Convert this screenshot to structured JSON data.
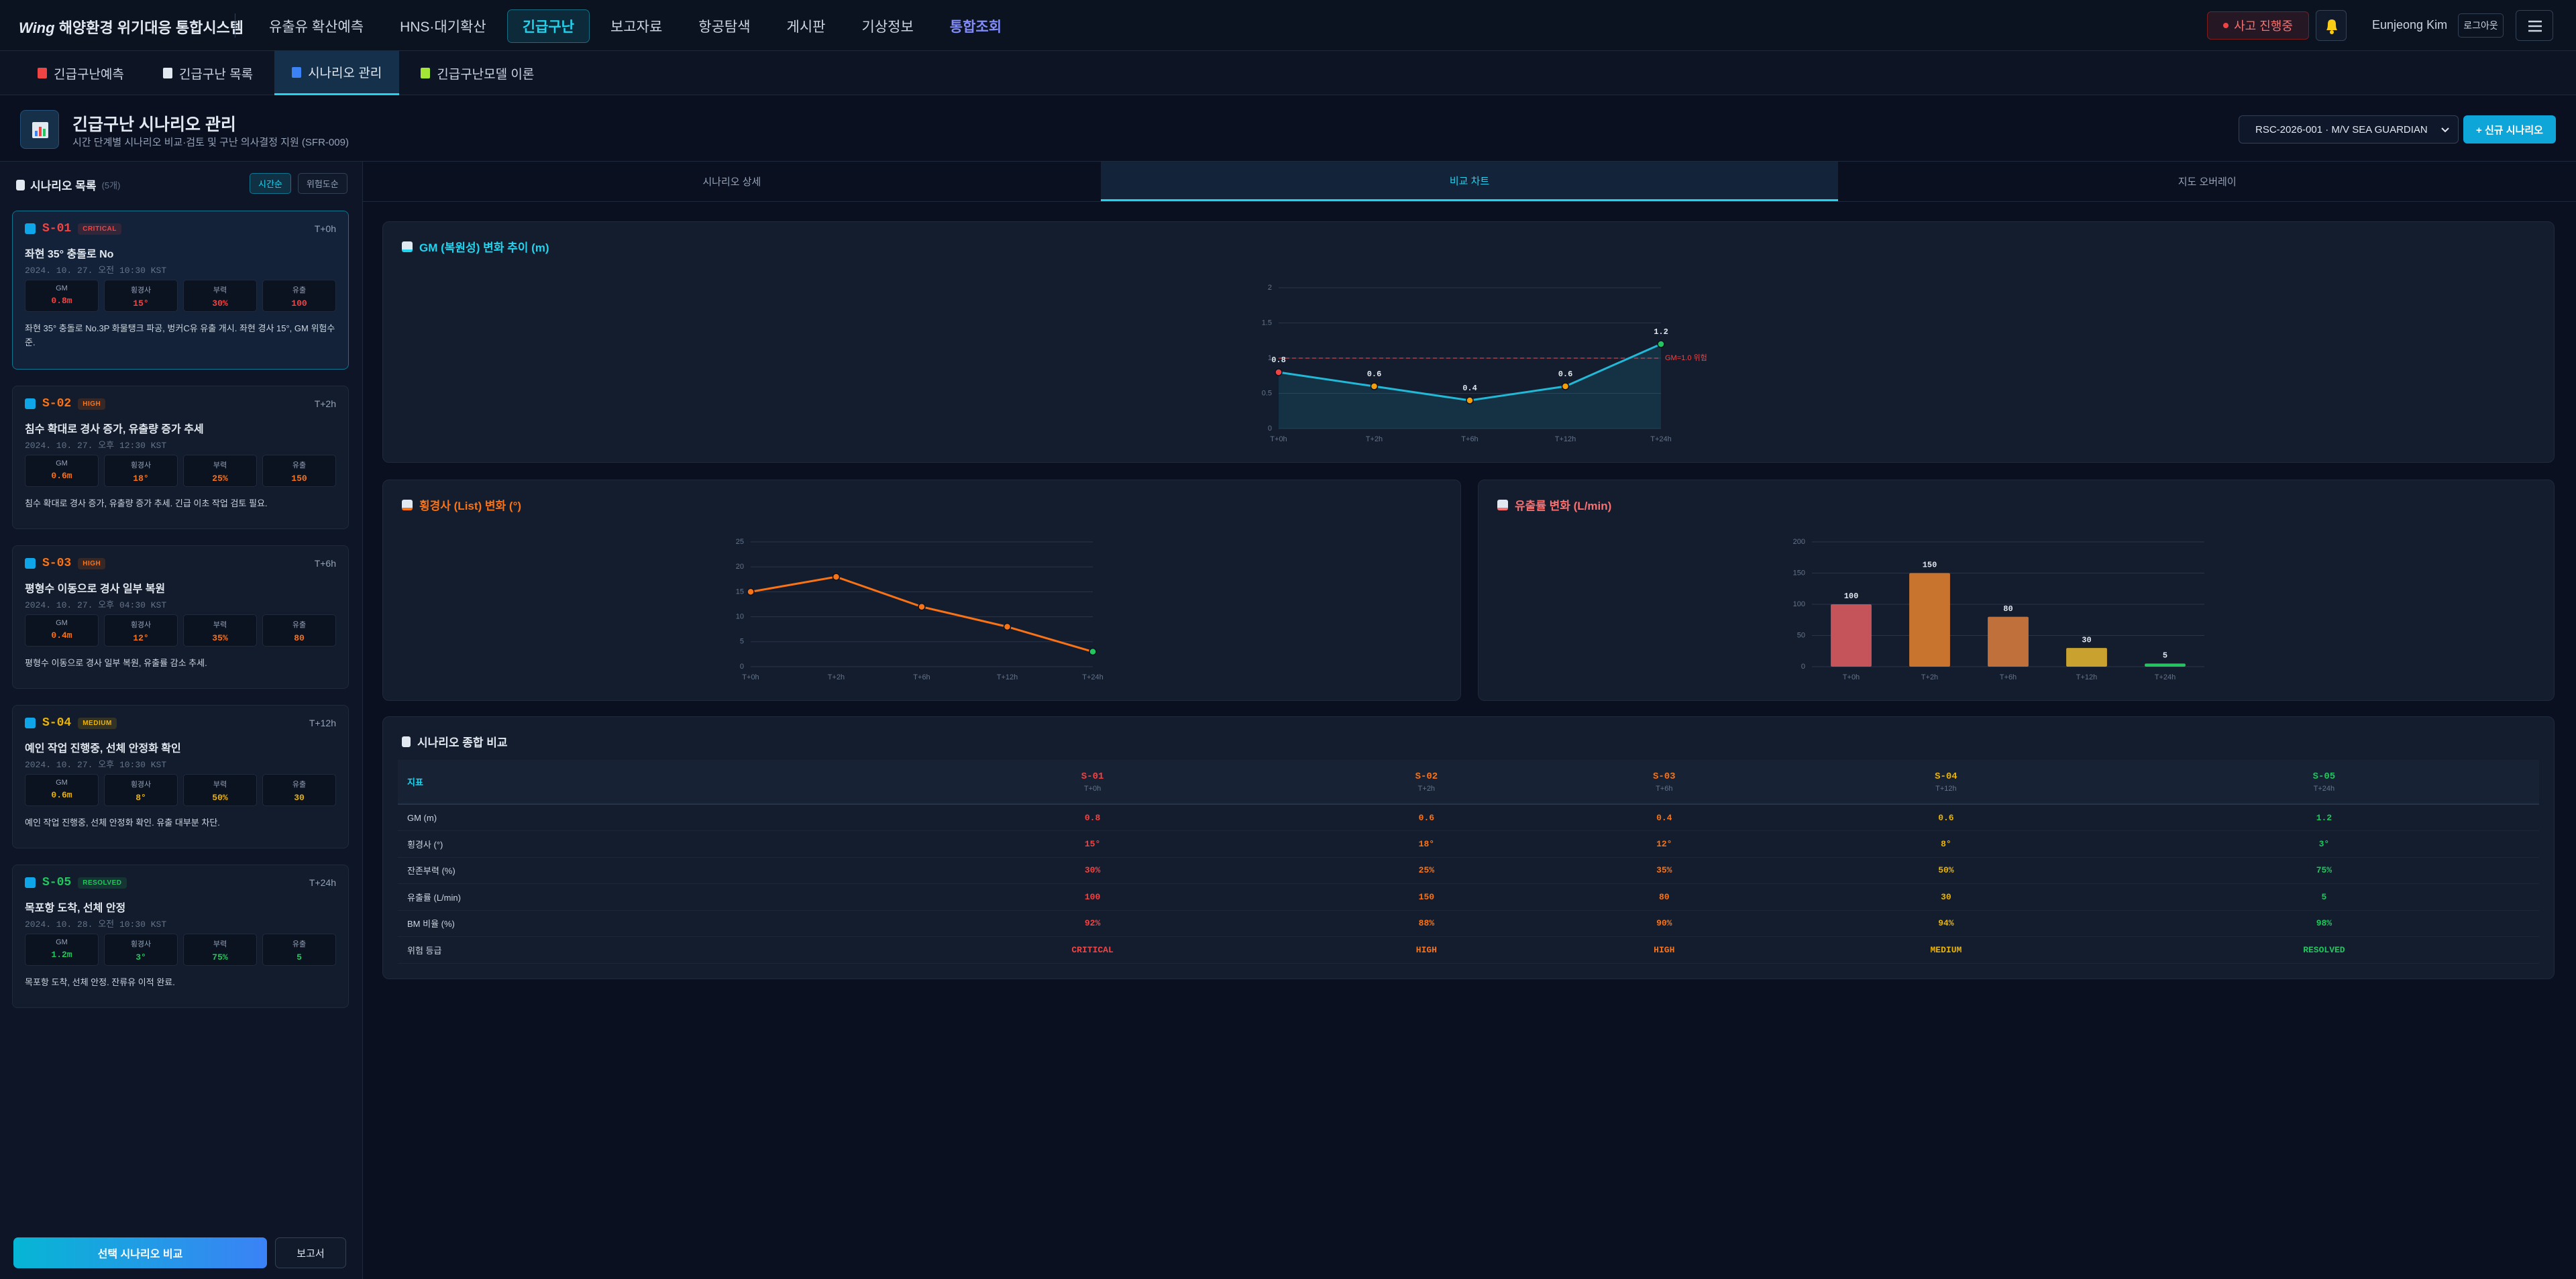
{
  "nav": {
    "logo": "Wing",
    "system": "해양환경 위기대응 통합시스템",
    "items": [
      "유출유 확산예측",
      "HNS·대기확산",
      "긴급구난",
      "보고자료",
      "항공탐색",
      "게시판",
      "기상정보",
      "통합조회"
    ],
    "active": 2,
    "highlight": 7,
    "status": "사고 진행중",
    "user": "Eunjeong Kim",
    "logout": "로그아웃"
  },
  "subtabs": {
    "items": [
      "긴급구난예측",
      "긴급구난 목록",
      "시나리오 관리",
      "긴급구난모델 이론"
    ],
    "active": 2
  },
  "header": {
    "title": "긴급구난 시나리오 관리",
    "subtitle": "시간 단계별 시나리오 비교·검토 및 구난 의사결정 지원 (SFR-009)",
    "incident": "RSC-2026-001 · M/V SEA GUARDIAN",
    "new_button": "+ 신규 시나리오"
  },
  "list": {
    "title": "시나리오 목록",
    "count": "(5개)",
    "sort": [
      "시간순",
      "위험도순"
    ],
    "selected": 0,
    "scenarios": [
      {
        "id": "S-01",
        "level": "CRITICAL",
        "time": "T+0h",
        "title": "좌현 35° 충돌로 No",
        "datetime": "2024. 10. 27. 오전 10:30 KST",
        "metrics": [
          {
            "label": "GM",
            "value": "0.8m"
          },
          {
            "label": "횡경사",
            "value": "15°"
          },
          {
            "label": "부력",
            "value": "30%"
          },
          {
            "label": "유출",
            "value": "100"
          }
        ],
        "desc": "좌현 35° 충돌로 No.3P 화물탱크 파공, 벙커C유 유출 개시. 좌현 경사 15°, GM 위험수준."
      },
      {
        "id": "S-02",
        "level": "HIGH",
        "time": "T+2h",
        "title": "침수 확대로 경사 증가, 유출량 증가 추세",
        "datetime": "2024. 10. 27. 오후 12:30 KST",
        "metrics": [
          {
            "label": "GM",
            "value": "0.6m"
          },
          {
            "label": "횡경사",
            "value": "18°"
          },
          {
            "label": "부력",
            "value": "25%"
          },
          {
            "label": "유출",
            "value": "150"
          }
        ],
        "desc": "침수 확대로 경사 증가, 유출량 증가 추세. 긴급 이초 작업 검토 필요."
      },
      {
        "id": "S-03",
        "level": "HIGH",
        "time": "T+6h",
        "title": "평형수 이동으로 경사 일부 복원",
        "datetime": "2024. 10. 27. 오후 04:30 KST",
        "metrics": [
          {
            "label": "GM",
            "value": "0.4m"
          },
          {
            "label": "횡경사",
            "value": "12°"
          },
          {
            "label": "부력",
            "value": "35%"
          },
          {
            "label": "유출",
            "value": "80"
          }
        ],
        "desc": "평형수 이동으로 경사 일부 복원, 유출률 감소 추세."
      },
      {
        "id": "S-04",
        "level": "MEDIUM",
        "time": "T+12h",
        "title": "예인 작업 진행중, 선체 안정화 확인",
        "datetime": "2024. 10. 27. 오후 10:30 KST",
        "metrics": [
          {
            "label": "GM",
            "value": "0.6m"
          },
          {
            "label": "횡경사",
            "value": "8°"
          },
          {
            "label": "부력",
            "value": "50%"
          },
          {
            "label": "유출",
            "value": "30"
          }
        ],
        "desc": "예인 작업 진행중, 선체 안정화 확인. 유출 대부분 차단."
      },
      {
        "id": "S-05",
        "level": "RESOLVED",
        "time": "T+24h",
        "title": "목포항 도착, 선체 안정",
        "datetime": "2024. 10. 28. 오전 10:30 KST",
        "metrics": [
          {
            "label": "GM",
            "value": "1.2m"
          },
          {
            "label": "횡경사",
            "value": "3°"
          },
          {
            "label": "부력",
            "value": "75%"
          },
          {
            "label": "유출",
            "value": "5"
          }
        ],
        "desc": "목포항 도착, 선체 안정. 잔류유 이적 완료."
      }
    ],
    "compare_button": "선택 시나리오 비교",
    "report_button": "보고서"
  },
  "view_tabs": {
    "items": [
      "시나리오 상세",
      "비교 차트",
      "지도 오버레이"
    ],
    "active": 1
  },
  "charts": [
    {
      "type": "line",
      "title": "GM (복원성) 변화 추이 (m)",
      "title_color": "#22d3ee",
      "categories": [
        "T+0h",
        "T+2h",
        "T+6h",
        "T+12h",
        "T+24h"
      ],
      "values": [
        0.8,
        0.6,
        0.4,
        0.6,
        1.2
      ],
      "color": "#22b8d6",
      "point_colors": [
        "#ef4444",
        "#f59e0b",
        "#f59e0b",
        "#f59e0b",
        "#22c55e"
      ],
      "area": true,
      "data_labels": true,
      "ylim": [
        0,
        2
      ],
      "yticks": [
        0,
        0.5,
        1,
        1.5,
        2
      ],
      "grid": true,
      "threshold": {
        "value": 1,
        "label": "GM=1.0 위험"
      }
    },
    {
      "type": "line",
      "title": "횡경사 (List) 변화 (°)",
      "title_color": "#f97316",
      "categories": [
        "T+0h",
        "T+2h",
        "T+6h",
        "T+12h",
        "T+24h"
      ],
      "values": [
        15,
        18,
        12,
        8,
        3
      ],
      "color": "#f97316",
      "point_colors": [
        "#f97316",
        "#f97316",
        "#f97316",
        "#f97316",
        "#22c55e"
      ],
      "ylim": [
        0,
        25
      ],
      "yticks": [
        0,
        5,
        10,
        15,
        20,
        25
      ],
      "grid": true
    },
    {
      "type": "bar",
      "title": "유출률 변화 (L/min)",
      "title_color": "#f87171",
      "categories": [
        "T+0h",
        "T+2h",
        "T+6h",
        "T+12h",
        "T+24h"
      ],
      "values": [
        100,
        150,
        80,
        30,
        5
      ],
      "colors": [
        "#c4545a",
        "#c8742f",
        "#c0703a",
        "#c9a12e",
        "#22c55e"
      ],
      "data_labels": true,
      "ylim": [
        0,
        200
      ],
      "yticks": [
        0,
        50,
        100,
        150,
        200
      ],
      "grid": true
    }
  ],
  "table": {
    "title": "시나리오 종합 비교",
    "header": "지표",
    "columns": [
      {
        "id": "S-01",
        "time": "T+0h",
        "level": "CRITICAL"
      },
      {
        "id": "S-02",
        "time": "T+2h",
        "level": "HIGH"
      },
      {
        "id": "S-03",
        "time": "T+6h",
        "level": "HIGH"
      },
      {
        "id": "S-04",
        "time": "T+12h",
        "level": "MEDIUM"
      },
      {
        "id": "S-05",
        "time": "T+24h",
        "level": "RESOLVED"
      }
    ],
    "rows": [
      {
        "label": "GM (m)",
        "cells": [
          "0.8",
          "0.6",
          "0.4",
          "0.6",
          "1.2"
        ]
      },
      {
        "label": "횡경사 (°)",
        "cells": [
          "15°",
          "18°",
          "12°",
          "8°",
          "3°"
        ]
      },
      {
        "label": "잔존부력 (%)",
        "cells": [
          "30%",
          "25%",
          "35%",
          "50%",
          "75%"
        ]
      },
      {
        "label": "유출률 (L/min)",
        "cells": [
          "100",
          "150",
          "80",
          "30",
          "5"
        ]
      },
      {
        "label": "BM 비율 (%)",
        "cells": [
          "92%",
          "88%",
          "90%",
          "94%",
          "98%"
        ]
      },
      {
        "label": "위험 등급",
        "cells": [
          "CRITICAL",
          "HIGH",
          "HIGH",
          "MEDIUM",
          "RESOLVED"
        ]
      }
    ]
  }
}
